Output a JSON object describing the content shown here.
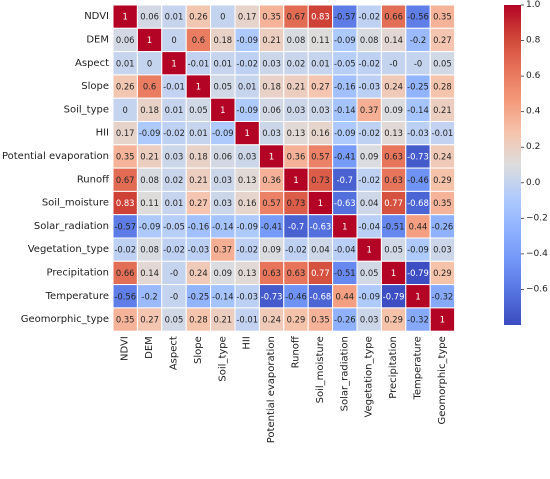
{
  "chart_data": {
    "type": "heatmap",
    "title": "",
    "xlabel": "",
    "ylabel": "",
    "variables": [
      "NDVI",
      "DEM",
      "Aspect",
      "Slope",
      "Soil_type",
      "HII",
      "Potential evaporation",
      "Runoff",
      "Soil_moisture",
      "Solar_radiation",
      "Vegetation_type",
      "Precipitation",
      "Temperature",
      "Geomorphic_type"
    ],
    "value_labels": [
      [
        "1",
        "0.06",
        "0.01",
        "0.26",
        "0",
        "0.17",
        "0.35",
        "0.67",
        "0.83",
        "-0.57",
        "-0.02",
        "0.66",
        "-0.56",
        "0.35"
      ],
      [
        "0.06",
        "1",
        "0",
        "0.6",
        "0.18",
        "-0.09",
        "0.21",
        "0.08",
        "0.11",
        "-0.09",
        "0.08",
        "0.14",
        "-0.2",
        "0.27"
      ],
      [
        "0.01",
        "0",
        "1",
        "-0.01",
        "0.01",
        "-0.02",
        "0.03",
        "0.02",
        "0.01",
        "-0.05",
        "-0.02",
        "-0",
        "-0",
        "0.05"
      ],
      [
        "0.26",
        "0.6",
        "-0.01",
        "1",
        "0.05",
        "0.01",
        "0.18",
        "0.21",
        "0.27",
        "-0.16",
        "-0.03",
        "0.24",
        "-0.25",
        "0.28"
      ],
      [
        "0",
        "0.18",
        "0.01",
        "0.05",
        "1",
        "-0.09",
        "0.06",
        "0.03",
        "0.03",
        "-0.14",
        "0.37",
        "0.09",
        "-0.14",
        "0.21"
      ],
      [
        "0.17",
        "-0.09",
        "-0.02",
        "0.01",
        "-0.09",
        "1",
        "0.03",
        "0.13",
        "0.16",
        "-0.09",
        "-0.02",
        "0.13",
        "-0.03",
        "-0.01"
      ],
      [
        "0.35",
        "0.21",
        "0.03",
        "0.18",
        "0.06",
        "0.03",
        "1",
        "0.36",
        "0.57",
        "-0.41",
        "0.09",
        "0.63",
        "-0.73",
        "0.24"
      ],
      [
        "0.67",
        "0.08",
        "0.02",
        "0.21",
        "0.03",
        "0.13",
        "0.36",
        "1",
        "0.73",
        "-0.7",
        "-0.02",
        "0.63",
        "-0.46",
        "0.29"
      ],
      [
        "0.83",
        "0.11",
        "0.01",
        "0.27",
        "0.03",
        "0.16",
        "0.57",
        "0.73",
        "1",
        "-0.63",
        "0.04",
        "0.77",
        "-0.68",
        "0.35"
      ],
      [
        "-0.57",
        "-0.09",
        "-0.05",
        "-0.16",
        "-0.14",
        "-0.09",
        "-0.41",
        "-0.7",
        "-0.63",
        "1",
        "-0.04",
        "-0.51",
        "0.44",
        "-0.26"
      ],
      [
        "-0.02",
        "0.08",
        "-0.02",
        "-0.03",
        "0.37",
        "-0.02",
        "0.09",
        "-0.02",
        "0.04",
        "-0.04",
        "1",
        "0.05",
        "-0.09",
        "0.03"
      ],
      [
        "0.66",
        "0.14",
        "-0",
        "0.24",
        "0.09",
        "0.13",
        "0.63",
        "0.63",
        "0.77",
        "-0.51",
        "0.05",
        "1",
        "-0.79",
        "0.29"
      ],
      [
        "-0.56",
        "-0.2",
        "-0",
        "-0.25",
        "-0.14",
        "-0.03",
        "-0.73",
        "-0.46",
        "-0.68",
        "0.44",
        "-0.09",
        "-0.79",
        "1",
        "-0.32"
      ],
      [
        "0.35",
        "0.27",
        "0.05",
        "0.28",
        "0.21",
        "-0.01",
        "0.24",
        "0.29",
        "0.35",
        "-0.26",
        "0.03",
        "0.29",
        "-0.32",
        "1"
      ]
    ],
    "colorbar": {
      "min": -0.8,
      "max": 1.0,
      "ticks": [
        "1.0",
        "0.8",
        "0.6",
        "0.4",
        "0.2",
        "0.0",
        "−0.2",
        "−0.4",
        "−0.6"
      ],
      "tick_values": [
        1.0,
        0.8,
        0.6,
        0.4,
        0.2,
        0.0,
        -0.2,
        -0.4,
        -0.6
      ],
      "colormap": "coolwarm"
    },
    "grid": true,
    "cell_border_color": "#ffffff"
  }
}
